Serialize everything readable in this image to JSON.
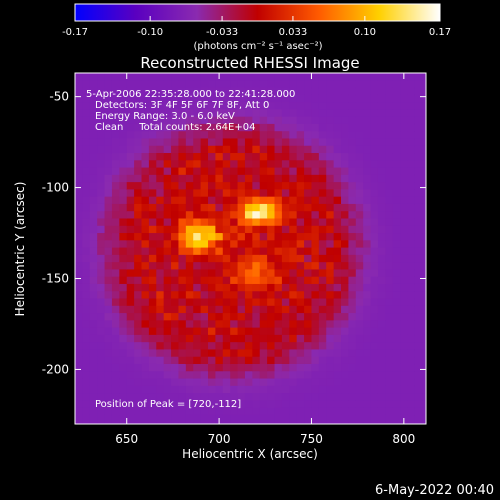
{
  "chart_data": {
    "type": "heatmap",
    "title": "Reconstructed RHESSI Image",
    "xlabel": "Heliocentric X (arcsec)",
    "ylabel": "Heliocentric Y (arcsec)",
    "xlim": [
      622,
      812
    ],
    "ylim": [
      -230,
      -37
    ],
    "x_ticks": [
      650,
      700,
      750,
      800
    ],
    "y_ticks": [
      -50,
      -100,
      -150,
      -200
    ],
    "colorbar": {
      "range": [
        -0.17,
        0.17
      ],
      "ticks": [
        "-0.17",
        "-0.10",
        "-0.033",
        "0.033",
        "0.10",
        "0.17"
      ],
      "unit_label": "(photons cm⁻² s⁻¹ asec⁻²)",
      "colormap": [
        "#0000ff",
        "#5a00c0",
        "#8a2ab0",
        "#c00000",
        "#ff5a00",
        "#ffd000",
        "#ffffff"
      ]
    },
    "annotations": [
      "5-Apr-2006 22:35:28.000 to 22:41:28.000",
      "Detectors: 3F 4F 5F 6F 7F 8F, Att 0",
      "Energy Range: 3.0 - 6.0 keV",
      "Clean     Total counts: 2.64E+04"
    ],
    "peak_label": "Position of Peak = [720,-112]",
    "peak": [
      720,
      -112
    ],
    "source": {
      "disk_center": [
        705,
        -132
      ],
      "disk_radius": 68,
      "secondary_peak": [
        688,
        -125
      ],
      "max_value": 0.17,
      "background_value": -0.07
    }
  },
  "footer": {
    "timestamp": "6-May-2022 00:40"
  }
}
